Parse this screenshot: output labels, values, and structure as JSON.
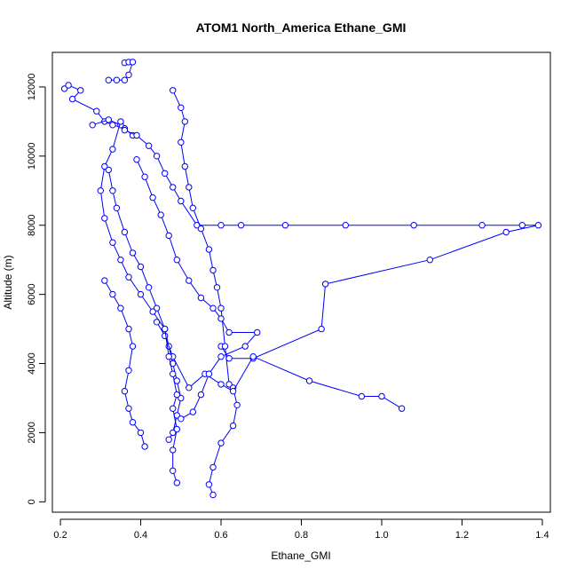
{
  "chart_data": {
    "type": "scatter",
    "title": "ATOM1 North_America Ethane_GMI",
    "xlabel": "Ethane_GMI",
    "ylabel": "Altitude (m)",
    "xlim": [
      0.18,
      1.42
    ],
    "ylim": [
      -300,
      13000
    ],
    "xticks": [
      0.2,
      0.4,
      0.6,
      0.8,
      1.0,
      1.2,
      1.4
    ],
    "xtick_labels": [
      "0.2",
      "0.4",
      "0.6",
      "0.8",
      "1.0",
      "1.2",
      "1.4"
    ],
    "yticks": [
      0,
      2000,
      4000,
      6000,
      8000,
      10000,
      12000
    ],
    "ytick_labels": [
      "0",
      "2000",
      "4000",
      "6000",
      "8000",
      "10000",
      "12000"
    ],
    "grid": false,
    "legend": "none",
    "colors": {
      "series": "#0000ff",
      "axis": "#000000"
    },
    "series": [
      {
        "marker": "open-circle",
        "line": true,
        "segments": [
          [
            [
              0.36,
              12700
            ],
            [
              0.37,
              12720
            ],
            [
              0.38,
              12720
            ],
            [
              0.37,
              12350
            ],
            [
              0.36,
              12200
            ],
            [
              0.34,
              12200
            ],
            [
              0.32,
              12200
            ]
          ],
          [
            [
              0.21,
              11950
            ],
            [
              0.22,
              12050
            ],
            [
              0.25,
              11900
            ],
            [
              0.23,
              11650
            ],
            [
              0.29,
              11300
            ],
            [
              0.31,
              11000
            ],
            [
              0.33,
              10900
            ],
            [
              0.36,
              10800
            ],
            [
              0.38,
              10600
            ]
          ],
          [
            [
              0.28,
              10900
            ],
            [
              0.32,
              11050
            ],
            [
              0.35,
              10900
            ],
            [
              0.36,
              10750
            ],
            [
              0.39,
              10600
            ],
            [
              0.42,
              10300
            ],
            [
              0.44,
              10000
            ],
            [
              0.46,
              9500
            ],
            [
              0.48,
              9100
            ],
            [
              0.5,
              8700
            ],
            [
              0.54,
              8000
            ],
            [
              0.6,
              8000
            ],
            [
              0.65,
              8000
            ],
            [
              0.76,
              8000
            ],
            [
              0.91,
              8000
            ],
            [
              1.08,
              8000
            ],
            [
              1.25,
              8000
            ],
            [
              1.35,
              8000
            ],
            [
              1.39,
              8000
            ],
            [
              1.31,
              7800
            ],
            [
              1.12,
              7000
            ],
            [
              0.86,
              6300
            ],
            [
              0.85,
              5000
            ],
            [
              0.68,
              4150
            ],
            [
              0.62,
              4150
            ],
            [
              0.6,
              4500
            ]
          ],
          [
            [
              0.32,
              9600
            ],
            [
              0.33,
              9000
            ],
            [
              0.34,
              8500
            ],
            [
              0.36,
              7800
            ],
            [
              0.38,
              7200
            ],
            [
              0.4,
              6800
            ],
            [
              0.42,
              6200
            ],
            [
              0.44,
              5600
            ],
            [
              0.46,
              5000
            ],
            [
              0.47,
              4500
            ],
            [
              0.48,
              4000
            ],
            [
              0.49,
              3500
            ],
            [
              0.5,
              3000
            ],
            [
              0.49,
              2500
            ],
            [
              0.48,
              2000
            ],
            [
              0.47,
              1800
            ]
          ],
          [
            [
              0.48,
              11900
            ],
            [
              0.5,
              11400
            ],
            [
              0.51,
              11000
            ],
            [
              0.5,
              10400
            ],
            [
              0.51,
              9700
            ],
            [
              0.52,
              9100
            ],
            [
              0.53,
              8500
            ],
            [
              0.55,
              7900
            ],
            [
              0.57,
              7300
            ],
            [
              0.58,
              6700
            ],
            [
              0.59,
              6200
            ],
            [
              0.6,
              5600
            ],
            [
              0.61,
              4500
            ],
            [
              0.62,
              3400
            ],
            [
              0.63,
              3300
            ],
            [
              0.64,
              2800
            ],
            [
              0.63,
              2200
            ],
            [
              0.6,
              1700
            ],
            [
              0.58,
              1000
            ],
            [
              0.57,
              500
            ],
            [
              0.58,
              200
            ]
          ],
          [
            [
              0.31,
              6400
            ],
            [
              0.33,
              6000
            ],
            [
              0.35,
              5600
            ],
            [
              0.37,
              5000
            ],
            [
              0.38,
              4500
            ],
            [
              0.37,
              3800
            ],
            [
              0.36,
              3200
            ],
            [
              0.37,
              2700
            ],
            [
              0.38,
              2300
            ],
            [
              0.4,
              2000
            ],
            [
              0.41,
              1600
            ]
          ],
          [
            [
              0.44,
              5200
            ],
            [
              0.46,
              4800
            ],
            [
              0.48,
              4200
            ],
            [
              0.52,
              3300
            ],
            [
              0.56,
              3700
            ],
            [
              0.6,
              3400
            ],
            [
              0.63,
              3200
            ],
            [
              0.68,
              4200
            ],
            [
              0.82,
              3500
            ],
            [
              0.95,
              3050
            ],
            [
              1.0,
              3050
            ],
            [
              1.05,
              2700
            ]
          ],
          [
            [
              0.35,
              11000
            ],
            [
              0.33,
              10200
            ],
            [
              0.31,
              9700
            ],
            [
              0.3,
              9000
            ],
            [
              0.31,
              8200
            ],
            [
              0.33,
              7500
            ],
            [
              0.35,
              7000
            ],
            [
              0.37,
              6500
            ],
            [
              0.4,
              6000
            ],
            [
              0.43,
              5500
            ],
            [
              0.46,
              5000
            ],
            [
              0.47,
              4200
            ],
            [
              0.48,
              3700
            ],
            [
              0.49,
              3100
            ],
            [
              0.48,
              2700
            ],
            [
              0.49,
              2100
            ],
            [
              0.48,
              1500
            ],
            [
              0.48,
              900
            ],
            [
              0.49,
              550
            ]
          ],
          [
            [
              0.39,
              9900
            ],
            [
              0.41,
              9400
            ],
            [
              0.43,
              8800
            ],
            [
              0.45,
              8300
            ],
            [
              0.47,
              7700
            ],
            [
              0.49,
              7000
            ],
            [
              0.52,
              6400
            ],
            [
              0.55,
              5900
            ],
            [
              0.58,
              5600
            ],
            [
              0.6,
              5300
            ],
            [
              0.62,
              4900
            ],
            [
              0.69,
              4900
            ],
            [
              0.66,
              4500
            ],
            [
              0.6,
              4200
            ],
            [
              0.57,
              3700
            ],
            [
              0.55,
              3100
            ],
            [
              0.53,
              2600
            ],
            [
              0.5,
              2400
            ]
          ]
        ]
      }
    ]
  }
}
